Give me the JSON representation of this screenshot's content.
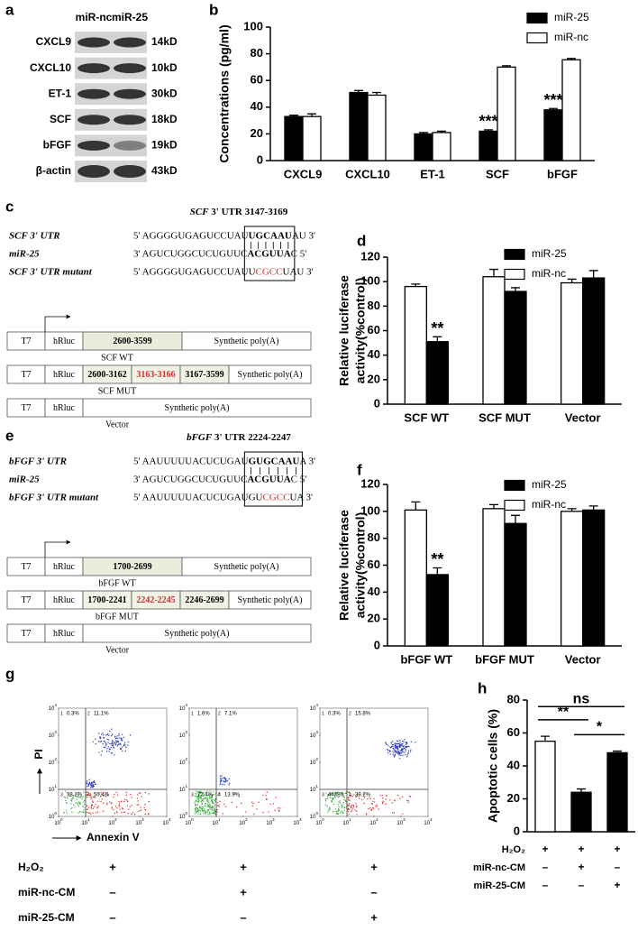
{
  "panel_labels": [
    "a",
    "b",
    "c",
    "d",
    "e",
    "f",
    "g",
    "h"
  ],
  "blot": {
    "columns": [
      "miR-nc",
      "miR-25"
    ],
    "rows": [
      {
        "name": "CXCL9",
        "size": "14kD"
      },
      {
        "name": "CXCL10",
        "size": "10kD"
      },
      {
        "name": "ET-1",
        "size": "30kD"
      },
      {
        "name": "SCF",
        "size": "18kD"
      },
      {
        "name": "bFGF",
        "size": "19kD"
      },
      {
        "name": "β-actin",
        "size": "43kD"
      }
    ]
  },
  "constructs": [
    {
      "title": [
        {
          "text": "SCF",
          "style": "italic"
        },
        {
          "text": " 3' UTR 3147-3169",
          "style": "plain"
        }
      ],
      "alignment": [
        {
          "label": "SCF 3' UTR",
          "seq": [
            {
              "text": "5' AGGGGUGAGUCCUAU",
              "style": "plain"
            },
            {
              "text": "UGCAAU",
              "style": "bold"
            },
            {
              "text": "AU 3'",
              "style": "plain"
            }
          ]
        },
        {
          "label": "miR-25",
          "seq": [
            {
              "text": "3' AGUCUGGCUCUGUUC",
              "style": "plain"
            },
            {
              "text": "ACGUUA",
              "style": "bold"
            },
            {
              "text": "C 5'",
              "style": "plain"
            }
          ]
        },
        {
          "label": "SCF 3' UTR mutant",
          "seq": [
            {
              "text": "5' AGGGGUGAGUCCUAU",
              "style": "plain"
            },
            {
              "text": "U",
              "style": "plain"
            },
            {
              "text": "CGCC",
              "style": "red"
            },
            {
              "text": "UAU 3'",
              "style": "plain"
            }
          ]
        }
      ],
      "schematics": [
        {
          "caption": "SCF WT",
          "boxes": [
            {
              "text": "T7",
              "style": "plain"
            },
            {
              "text": "hRluc",
              "style": "plain"
            },
            {
              "text": "2600-3599",
              "style": "shaded"
            },
            {
              "text": "Synthetic poly(A)",
              "style": "plain"
            }
          ]
        },
        {
          "caption": "SCF MUT",
          "boxes": [
            {
              "text": "T7",
              "style": "plain"
            },
            {
              "text": "hRluc",
              "style": "plain"
            },
            {
              "text": "2600-3162",
              "style": "shaded"
            },
            {
              "text": "3163-3166",
              "style": "red"
            },
            {
              "text": "3167-3599",
              "style": "shaded"
            },
            {
              "text": "Synthetic poly(A)",
              "style": "plain"
            }
          ]
        },
        {
          "caption": "Vector",
          "boxes": [
            {
              "text": "T7",
              "style": "plain"
            },
            {
              "text": "hRluc",
              "style": "plain"
            },
            {
              "text": "Synthetic poly(A)",
              "style": "plain"
            }
          ]
        }
      ]
    },
    {
      "title": [
        {
          "text": "bFGF",
          "style": "italic"
        },
        {
          "text": " 3' UTR 2224-2247",
          "style": "plain"
        }
      ],
      "alignment": [
        {
          "label": "bFGF 3' UTR",
          "seq": [
            {
              "text": "5' AAUUUUUACUCUGAU",
              "style": "plain"
            },
            {
              "text": "GUGCAAU",
              "style": "bold"
            },
            {
              "text": "A 3'",
              "style": "plain"
            }
          ]
        },
        {
          "label": "miR-25",
          "seq": [
            {
              "text": "3' AGUCUGGCUCUGUUC",
              "style": "plain"
            },
            {
              "text": "ACGUUA",
              "style": "bold"
            },
            {
              "text": "C 5'",
              "style": "plain"
            }
          ]
        },
        {
          "label": "bFGF 3' UTR mutant",
          "seq": [
            {
              "text": "5' AAUUUUUACUCUGAU",
              "style": "plain"
            },
            {
              "text": "GU",
              "style": "plain"
            },
            {
              "text": "CGCC",
              "style": "red"
            },
            {
              "text": "UA 3'",
              "style": "plain"
            }
          ]
        }
      ],
      "schematics": [
        {
          "caption": "bFGF WT",
          "boxes": [
            {
              "text": "T7",
              "style": "plain"
            },
            {
              "text": "hRluc",
              "style": "plain"
            },
            {
              "text": "1700-2699",
              "style": "shaded"
            },
            {
              "text": "Synthetic poly(A)",
              "style": "plain"
            }
          ]
        },
        {
          "caption": "bFGF MUT",
          "boxes": [
            {
              "text": "T7",
              "style": "plain"
            },
            {
              "text": "hRluc",
              "style": "plain"
            },
            {
              "text": "1700-2241",
              "style": "shaded"
            },
            {
              "text": "2242-2245",
              "style": "red"
            },
            {
              "text": "2246-2699",
              "style": "shaded"
            },
            {
              "text": "Synthetic poly(A)",
              "style": "plain"
            }
          ]
        },
        {
          "caption": "Vector",
          "boxes": [
            {
              "text": "T7",
              "style": "plain"
            },
            {
              "text": "hRluc",
              "style": "plain"
            },
            {
              "text": "Synthetic poly(A)",
              "style": "plain"
            }
          ]
        }
      ]
    }
  ],
  "flow": {
    "y_label": "PI",
    "x_label": "Annexin V",
    "tick_base": "10",
    "tick_exponents": [
      0,
      1,
      2,
      3,
      4
    ],
    "quadrant_ids": [
      "1",
      "2",
      "3",
      "4"
    ],
    "plots": [
      {
        "quadrants": [
          "0.3%",
          "11.1%",
          "38.2%",
          "50.4%"
        ]
      },
      {
        "quadrants": [
          "1.6%",
          "7.1%",
          "77.4%",
          "13.9%"
        ]
      },
      {
        "quadrants": [
          "0.3%",
          "15.8%",
          "44.6%",
          "39.2%"
        ]
      }
    ]
  },
  "treatments": {
    "rows": [
      {
        "label": "H₂O₂",
        "marks": [
          "+",
          "+",
          "+"
        ]
      },
      {
        "label": "miR-nc-CM",
        "marks": [
          "–",
          "+",
          "–"
        ]
      },
      {
        "label": "miR-25-CM",
        "marks": [
          "–",
          "–",
          "+"
        ]
      }
    ]
  },
  "chart_data": [
    {
      "type": "bar",
      "ylabel": [
        "Concentrations (pg/ml)"
      ],
      "categories": [
        "CXCL9",
        "CXCL10",
        "ET-1",
        "SCF",
        "bFGF"
      ],
      "series": [
        {
          "name": "miR-25",
          "color": "#000000",
          "values": [
            33,
            51,
            20,
            22,
            38
          ],
          "errors": [
            1,
            1.5,
            1,
            1,
            1
          ]
        },
        {
          "name": "miR-nc",
          "color": "#ffffff",
          "values": [
            33,
            49,
            21,
            70,
            75.5
          ],
          "errors": [
            2,
            2,
            1,
            1,
            1
          ]
        }
      ],
      "ylim": [
        0,
        100
      ],
      "yticks": [
        0,
        20,
        40,
        60,
        80,
        100
      ],
      "legend": "upper right",
      "annotations": [
        {
          "text": "***",
          "series": 0,
          "category": 3
        },
        {
          "text": "***",
          "series": 0,
          "category": 4
        }
      ]
    },
    {
      "type": "bar",
      "ylabel": [
        "Relative luciferase",
        "activity(%control)"
      ],
      "categories": [
        "SCF WT",
        "SCF MUT",
        "Vector"
      ],
      "series": [
        {
          "name": "miR-nc",
          "color": "#ffffff",
          "values": [
            96,
            104,
            99
          ],
          "errors": [
            2,
            6,
            3
          ]
        },
        {
          "name": "miR-25",
          "color": "#000000",
          "values": [
            51,
            92,
            103
          ],
          "errors": [
            4,
            3,
            6
          ]
        }
      ],
      "ylim": [
        0,
        120
      ],
      "yticks": [
        0,
        20,
        40,
        60,
        80,
        100,
        120
      ],
      "legend": "upper right",
      "legend_reversed": true,
      "annotations": [
        {
          "text": "**",
          "series": 1,
          "category": 0
        }
      ]
    },
    {
      "type": "bar",
      "ylabel": [
        "Relative luciferase",
        "activity(%control)"
      ],
      "categories": [
        "bFGF WT",
        "bFGF MUT",
        "Vector"
      ],
      "series": [
        {
          "name": "miR-nc",
          "color": "#ffffff",
          "values": [
            101,
            102,
            100
          ],
          "errors": [
            6,
            3,
            2
          ]
        },
        {
          "name": "miR-25",
          "color": "#000000",
          "values": [
            53,
            91,
            101
          ],
          "errors": [
            5,
            6,
            3
          ]
        }
      ],
      "ylim": [
        0,
        120
      ],
      "yticks": [
        0,
        20,
        40,
        60,
        80,
        100,
        120
      ],
      "legend": "upper right",
      "legend_reversed": true,
      "annotations": [
        {
          "text": "**",
          "series": 1,
          "category": 0
        }
      ]
    },
    {
      "type": "bar",
      "ylabel": [
        "Apoptotic cells (%)"
      ],
      "values": [
        55,
        24,
        48
      ],
      "errors": [
        3,
        2,
        1
      ],
      "colors": [
        "#ffffff",
        "#000000",
        "#000000"
      ],
      "ylim": [
        0,
        80
      ],
      "yticks": [
        0,
        20,
        40,
        60,
        80
      ],
      "brackets": [
        {
          "label": "ns",
          "from": 0,
          "to": 2
        },
        {
          "label": "**",
          "from": 0,
          "to": 1
        },
        {
          "label": "*",
          "from": 1,
          "to": 2
        }
      ],
      "conditions": {
        "rows": [
          {
            "label": "H₂O₂",
            "marks": [
              "+",
              "+",
              "+"
            ]
          },
          {
            "label": "miR-nc-CM",
            "marks": [
              "–",
              "+",
              "–"
            ]
          },
          {
            "label": "miR-25-CM",
            "marks": [
              "–",
              "–",
              "+"
            ]
          }
        ]
      }
    }
  ]
}
